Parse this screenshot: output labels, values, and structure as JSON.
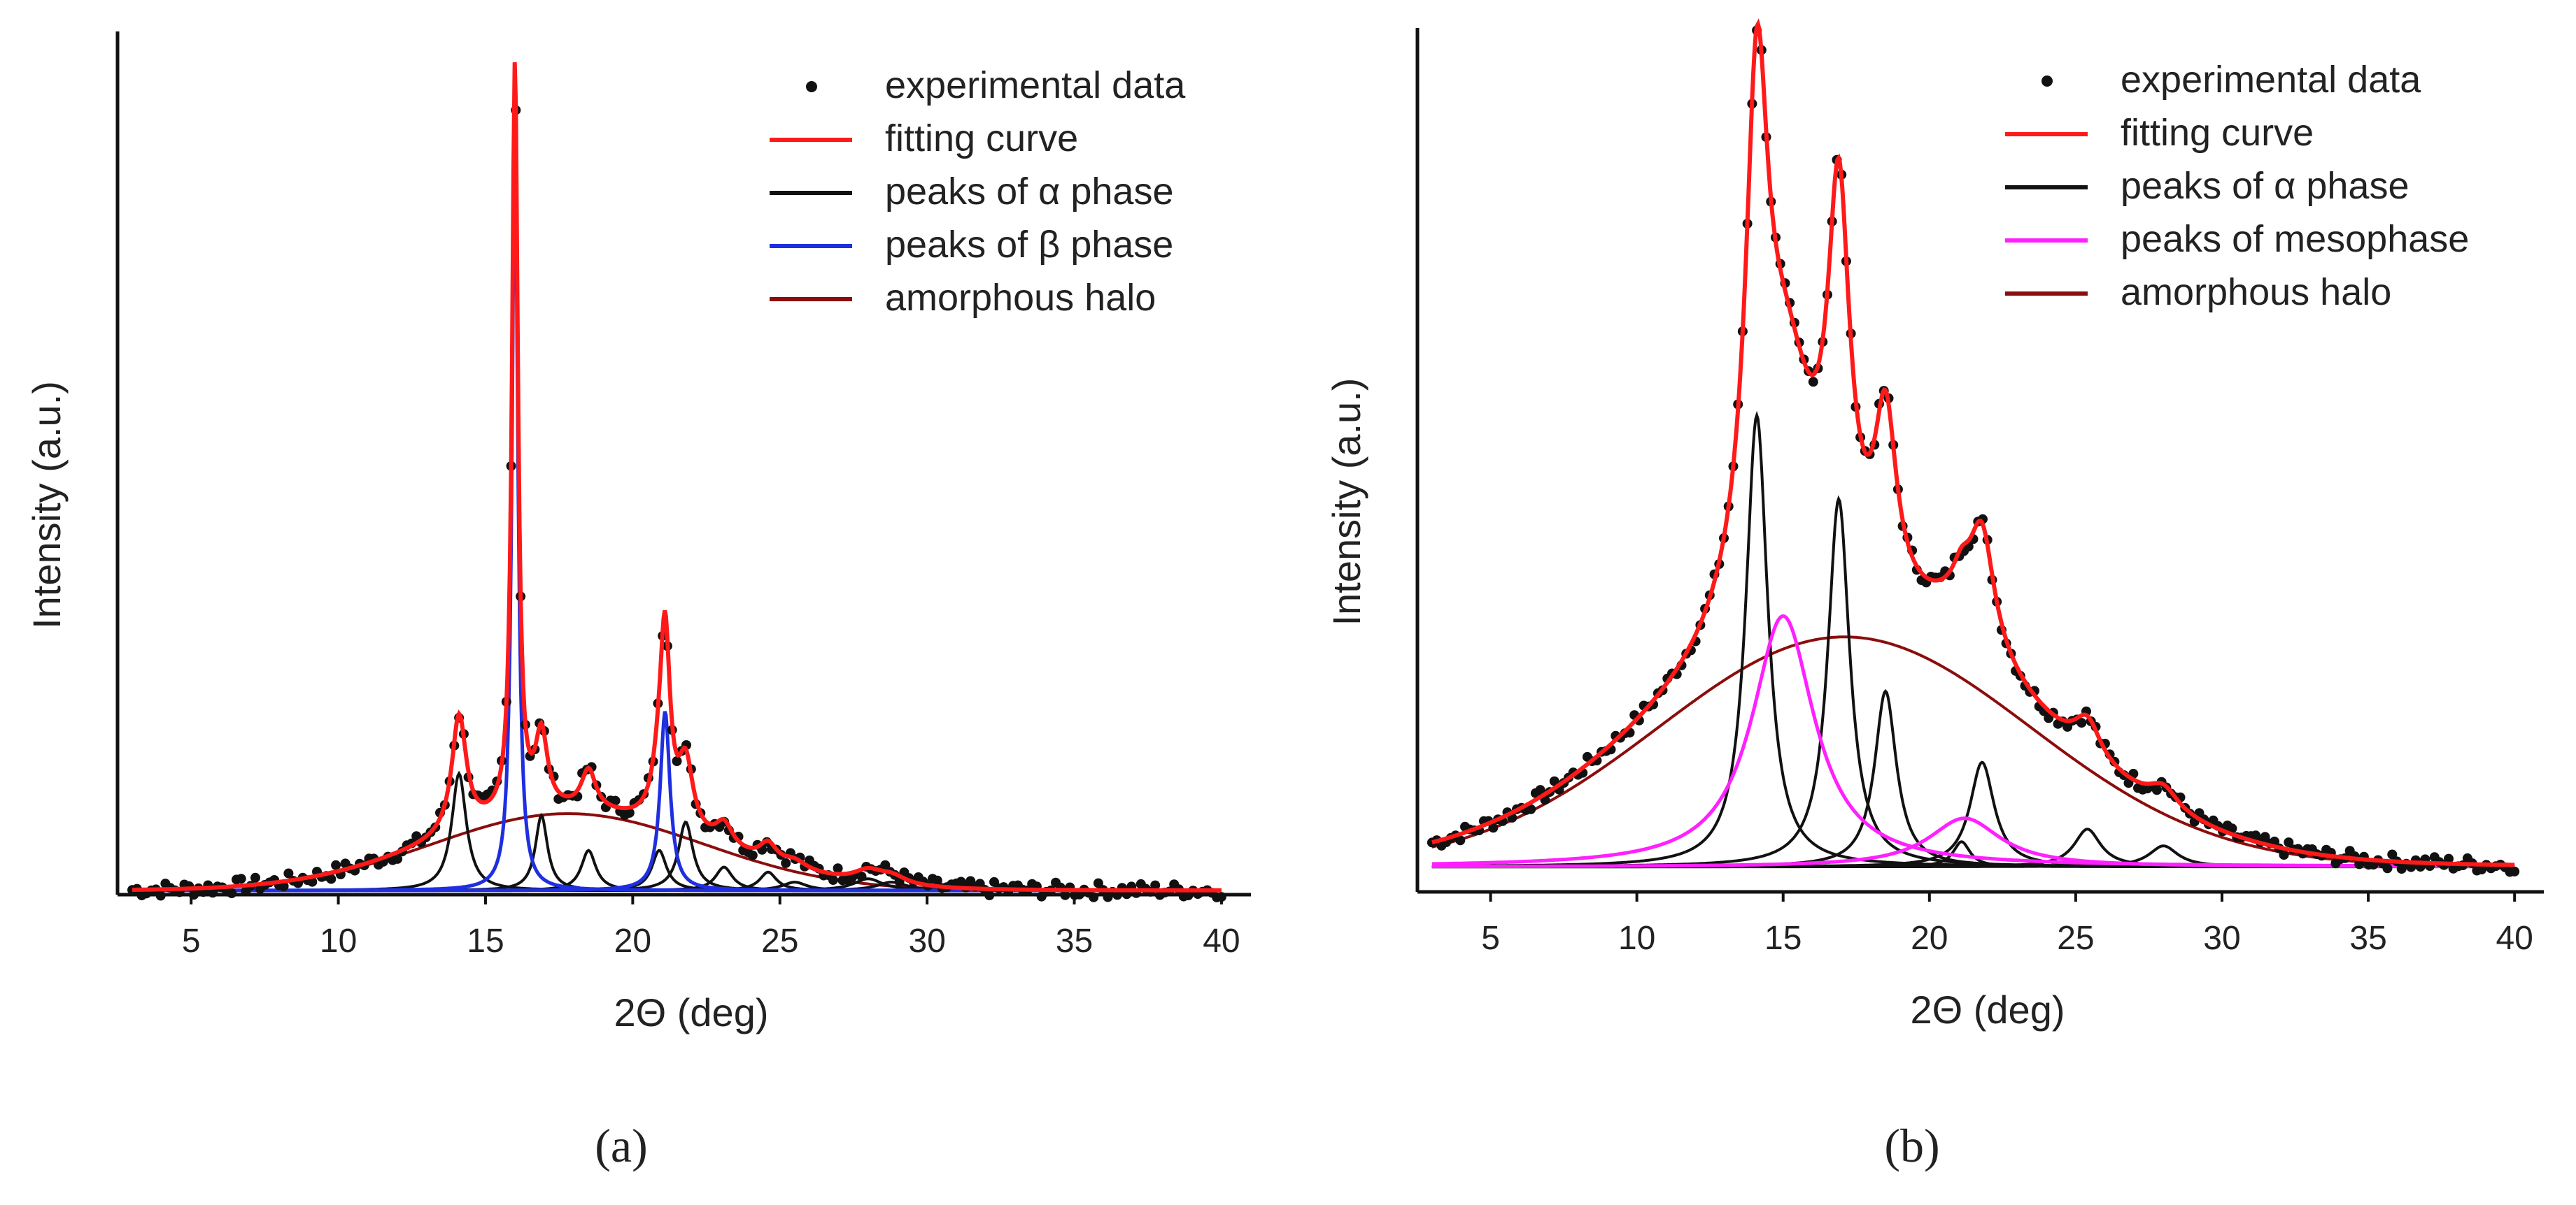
{
  "chart_data": [
    {
      "type": "line",
      "panel_label": "(a)",
      "xlabel": "2Θ (deg)",
      "ylabel": "Intensity (a.u.)",
      "xlim": [
        2.5,
        41
      ],
      "ylim": [
        0,
        1.0
      ],
      "xticks": [
        5,
        10,
        15,
        20,
        25,
        30,
        35,
        40
      ],
      "legend_position": "top-right",
      "legend": [
        {
          "label": "experimental data",
          "kind": "dots",
          "color": "#111111"
        },
        {
          "label": "fitting curve",
          "kind": "line",
          "color": "#ff1a1a"
        },
        {
          "label": "peaks of α phase",
          "kind": "line",
          "color": "#111111"
        },
        {
          "label": "peaks of β phase",
          "kind": "line",
          "color": "#1f2fe0"
        },
        {
          "label": "amorphous halo",
          "kind": "line",
          "color": "#8b0d0d"
        }
      ],
      "baseline": 0.005,
      "halo": {
        "center": 17.8,
        "width": 6.5,
        "height": 0.092
      },
      "alpha_peaks": [
        {
          "center": 14.1,
          "width": 0.3,
          "height": 0.14
        },
        {
          "center": 16.9,
          "width": 0.25,
          "height": 0.09
        },
        {
          "center": 18.5,
          "width": 0.3,
          "height": 0.048
        },
        {
          "center": 20.9,
          "width": 0.3,
          "height": 0.048
        },
        {
          "center": 21.8,
          "width": 0.3,
          "height": 0.082
        },
        {
          "center": 23.1,
          "width": 0.35,
          "height": 0.028
        },
        {
          "center": 24.6,
          "width": 0.35,
          "height": 0.022
        },
        {
          "center": 25.5,
          "width": 0.5,
          "height": 0.01
        },
        {
          "center": 28.0,
          "width": 0.6,
          "height": 0.014
        },
        {
          "center": 28.8,
          "width": 0.6,
          "height": 0.01
        }
      ],
      "beta_peaks": [
        {
          "center": 16.0,
          "width": 0.12,
          "height": 0.9
        },
        {
          "center": 21.1,
          "width": 0.2,
          "height": 0.215
        }
      ],
      "experimental_data_note": "dots sampled along fitting curve from 3 to 40 deg"
    },
    {
      "type": "line",
      "panel_label": "(b)",
      "xlabel": "2Θ (deg)",
      "ylabel": "Intensity (a.u.)",
      "xlim": [
        2.5,
        41
      ],
      "ylim": [
        0,
        1.0
      ],
      "xticks": [
        5,
        10,
        15,
        20,
        25,
        30,
        35,
        40
      ],
      "legend_position": "top-right",
      "legend": [
        {
          "label": "experimental data",
          "kind": "dots",
          "color": "#111111"
        },
        {
          "label": "fitting curve",
          "kind": "line",
          "color": "#ff1a1a"
        },
        {
          "label": "peaks of α phase",
          "kind": "line",
          "color": "#111111"
        },
        {
          "label": "peaks of mesophase",
          "kind": "line",
          "color": "#ff20ff"
        },
        {
          "label": "amorphous halo",
          "kind": "line",
          "color": "#8b0d0d"
        }
      ],
      "baseline": 0.03,
      "halo": {
        "center": 17.1,
        "width": 9.0,
        "height": 0.275
      },
      "alpha_peaks": [
        {
          "center": 14.1,
          "width": 0.45,
          "height": 0.54
        },
        {
          "center": 16.9,
          "width": 0.45,
          "height": 0.44
        },
        {
          "center": 18.5,
          "width": 0.45,
          "height": 0.21
        },
        {
          "center": 21.1,
          "width": 0.35,
          "height": 0.03
        },
        {
          "center": 21.8,
          "width": 0.5,
          "height": 0.125
        },
        {
          "center": 25.4,
          "width": 0.55,
          "height": 0.045
        },
        {
          "center": 28.0,
          "width": 0.6,
          "height": 0.025
        }
      ],
      "meso_peaks": [
        {
          "center": 15.0,
          "width": 1.3,
          "height": 0.3
        },
        {
          "center": 21.2,
          "width": 1.5,
          "height": 0.058
        }
      ],
      "experimental_data_note": "dots sampled along fitting curve from 3 to 40 deg with scatter"
    }
  ]
}
